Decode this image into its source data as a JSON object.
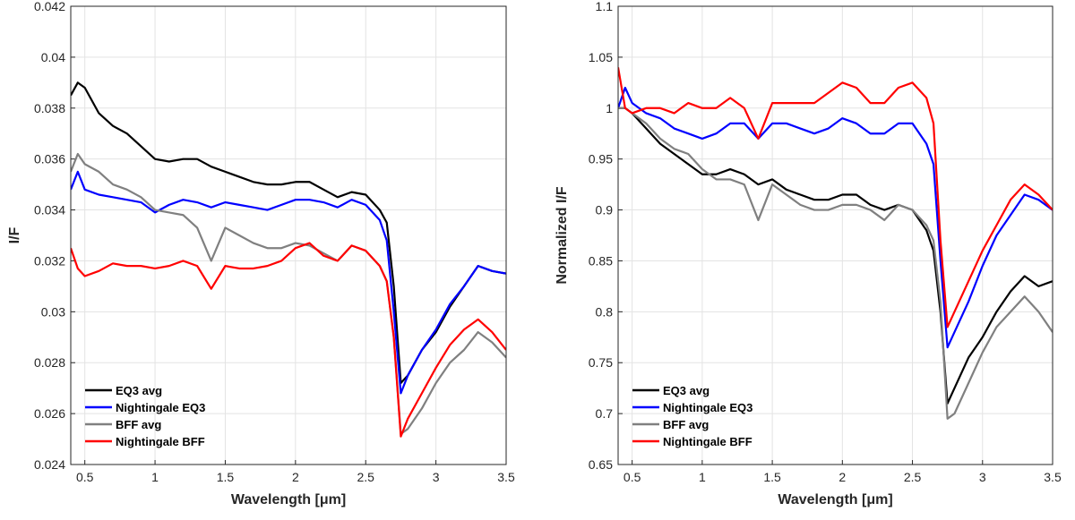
{
  "chart_data": [
    {
      "type": "line",
      "xlabel": "Wavelength [μm]",
      "ylabel": "I/F",
      "x": [
        0.4,
        0.45,
        0.5,
        0.6,
        0.7,
        0.8,
        0.9,
        1.0,
        1.1,
        1.2,
        1.3,
        1.4,
        1.5,
        1.6,
        1.7,
        1.8,
        1.9,
        2.0,
        2.1,
        2.2,
        2.3,
        2.4,
        2.5,
        2.6,
        2.65,
        2.7,
        2.75,
        2.8,
        2.9,
        3.0,
        3.1,
        3.2,
        3.3,
        3.4,
        3.5
      ],
      "xlim": [
        0.4,
        3.5
      ],
      "xticks": [
        0.5,
        1,
        1.5,
        2,
        2.5,
        3,
        3.5
      ],
      "ylim": [
        0.024,
        0.042
      ],
      "yticks": [
        0.024,
        0.026,
        0.028,
        0.03,
        0.032,
        0.034,
        0.036,
        0.038,
        0.04,
        0.042
      ],
      "grid": true,
      "legend_position": "lower left",
      "series": [
        {
          "name": "EQ3 avg",
          "color": "#000000",
          "values": [
            0.0385,
            0.039,
            0.0388,
            0.0378,
            0.0373,
            0.037,
            0.0365,
            0.036,
            0.0359,
            0.036,
            0.036,
            0.0357,
            0.0355,
            0.0353,
            0.0351,
            0.035,
            0.035,
            0.0351,
            0.0351,
            0.0348,
            0.0345,
            0.0347,
            0.0346,
            0.034,
            0.0335,
            0.031,
            0.0272,
            0.0275,
            0.0285,
            0.0292,
            0.0302,
            0.031,
            0.0318,
            0.0316,
            0.0315
          ]
        },
        {
          "name": "Nightingale EQ3",
          "color": "#0000ff",
          "values": [
            0.0348,
            0.0355,
            0.0348,
            0.0346,
            0.0345,
            0.0344,
            0.0343,
            0.0339,
            0.0342,
            0.0344,
            0.0343,
            0.0341,
            0.0343,
            0.0342,
            0.0341,
            0.034,
            0.0342,
            0.0344,
            0.0344,
            0.0343,
            0.0341,
            0.0344,
            0.0342,
            0.0336,
            0.0328,
            0.03,
            0.0268,
            0.0275,
            0.0285,
            0.0293,
            0.0303,
            0.031,
            0.0318,
            0.0316,
            0.0315
          ]
        },
        {
          "name": "BFF avg",
          "color": "#808080",
          "values": [
            0.0355,
            0.0362,
            0.0358,
            0.0355,
            0.035,
            0.0348,
            0.0345,
            0.034,
            0.0339,
            0.0338,
            0.0333,
            0.032,
            0.0333,
            0.033,
            0.0327,
            0.0325,
            0.0325,
            0.0327,
            0.0326,
            0.0323,
            0.032,
            0.0326,
            0.0324,
            0.0318,
            0.0312,
            0.029,
            0.0252,
            0.0254,
            0.0262,
            0.0272,
            0.028,
            0.0285,
            0.0292,
            0.0288,
            0.0282
          ]
        },
        {
          "name": "Nightingale BFF",
          "color": "#ff0000",
          "values": [
            0.0325,
            0.0317,
            0.0314,
            0.0316,
            0.0319,
            0.0318,
            0.0318,
            0.0317,
            0.0318,
            0.032,
            0.0318,
            0.0309,
            0.0318,
            0.0317,
            0.0317,
            0.0318,
            0.032,
            0.0325,
            0.0327,
            0.0322,
            0.032,
            0.0326,
            0.0324,
            0.0318,
            0.0312,
            0.029,
            0.0251,
            0.0258,
            0.0268,
            0.0278,
            0.0287,
            0.0293,
            0.0297,
            0.0292,
            0.0285
          ]
        }
      ]
    },
    {
      "type": "line",
      "xlabel": "Wavelength [μm]",
      "ylabel": "Normalized I/F",
      "x": [
        0.4,
        0.45,
        0.5,
        0.6,
        0.7,
        0.8,
        0.9,
        1.0,
        1.1,
        1.2,
        1.3,
        1.4,
        1.5,
        1.6,
        1.7,
        1.8,
        1.9,
        2.0,
        2.1,
        2.2,
        2.3,
        2.4,
        2.5,
        2.6,
        2.65,
        2.7,
        2.75,
        2.8,
        2.9,
        3.0,
        3.1,
        3.2,
        3.3,
        3.4,
        3.5
      ],
      "xlim": [
        0.4,
        3.5
      ],
      "xticks": [
        0.5,
        1,
        1.5,
        2,
        2.5,
        3,
        3.5
      ],
      "ylim": [
        0.65,
        1.1
      ],
      "yticks": [
        0.65,
        0.7,
        0.75,
        0.8,
        0.85,
        0.9,
        0.95,
        1,
        1.05,
        1.1
      ],
      "grid": true,
      "legend_position": "lower left",
      "series": [
        {
          "name": "EQ3 avg",
          "color": "#000000",
          "values": [
            1.0,
            1.0,
            0.995,
            0.98,
            0.965,
            0.955,
            0.945,
            0.935,
            0.935,
            0.94,
            0.935,
            0.925,
            0.93,
            0.92,
            0.915,
            0.91,
            0.91,
            0.915,
            0.915,
            0.905,
            0.9,
            0.905,
            0.9,
            0.88,
            0.86,
            0.8,
            0.71,
            0.725,
            0.755,
            0.775,
            0.8,
            0.82,
            0.835,
            0.825,
            0.83
          ]
        },
        {
          "name": "Nightingale EQ3",
          "color": "#0000ff",
          "values": [
            1.0,
            1.02,
            1.005,
            0.995,
            0.99,
            0.98,
            0.975,
            0.97,
            0.975,
            0.985,
            0.985,
            0.97,
            0.985,
            0.985,
            0.98,
            0.975,
            0.98,
            0.99,
            0.985,
            0.975,
            0.975,
            0.985,
            0.985,
            0.965,
            0.945,
            0.85,
            0.765,
            0.78,
            0.81,
            0.845,
            0.875,
            0.895,
            0.915,
            0.91,
            0.9
          ]
        },
        {
          "name": "BFF avg",
          "color": "#808080",
          "values": [
            1.0,
            1.0,
            0.995,
            0.985,
            0.97,
            0.96,
            0.955,
            0.94,
            0.93,
            0.93,
            0.925,
            0.89,
            0.925,
            0.915,
            0.905,
            0.9,
            0.9,
            0.905,
            0.905,
            0.9,
            0.89,
            0.905,
            0.9,
            0.885,
            0.87,
            0.81,
            0.695,
            0.7,
            0.73,
            0.76,
            0.785,
            0.8,
            0.815,
            0.8,
            0.78
          ]
        },
        {
          "name": "Nightingale BFF",
          "color": "#ff0000",
          "values": [
            1.04,
            1.0,
            0.995,
            1.0,
            1.0,
            0.995,
            1.005,
            1.0,
            1.0,
            1.01,
            1.0,
            0.97,
            1.005,
            1.005,
            1.005,
            1.005,
            1.015,
            1.025,
            1.02,
            1.005,
            1.005,
            1.02,
            1.025,
            1.01,
            0.985,
            0.87,
            0.785,
            0.8,
            0.83,
            0.86,
            0.885,
            0.91,
            0.925,
            0.915,
            0.9
          ]
        }
      ]
    }
  ]
}
